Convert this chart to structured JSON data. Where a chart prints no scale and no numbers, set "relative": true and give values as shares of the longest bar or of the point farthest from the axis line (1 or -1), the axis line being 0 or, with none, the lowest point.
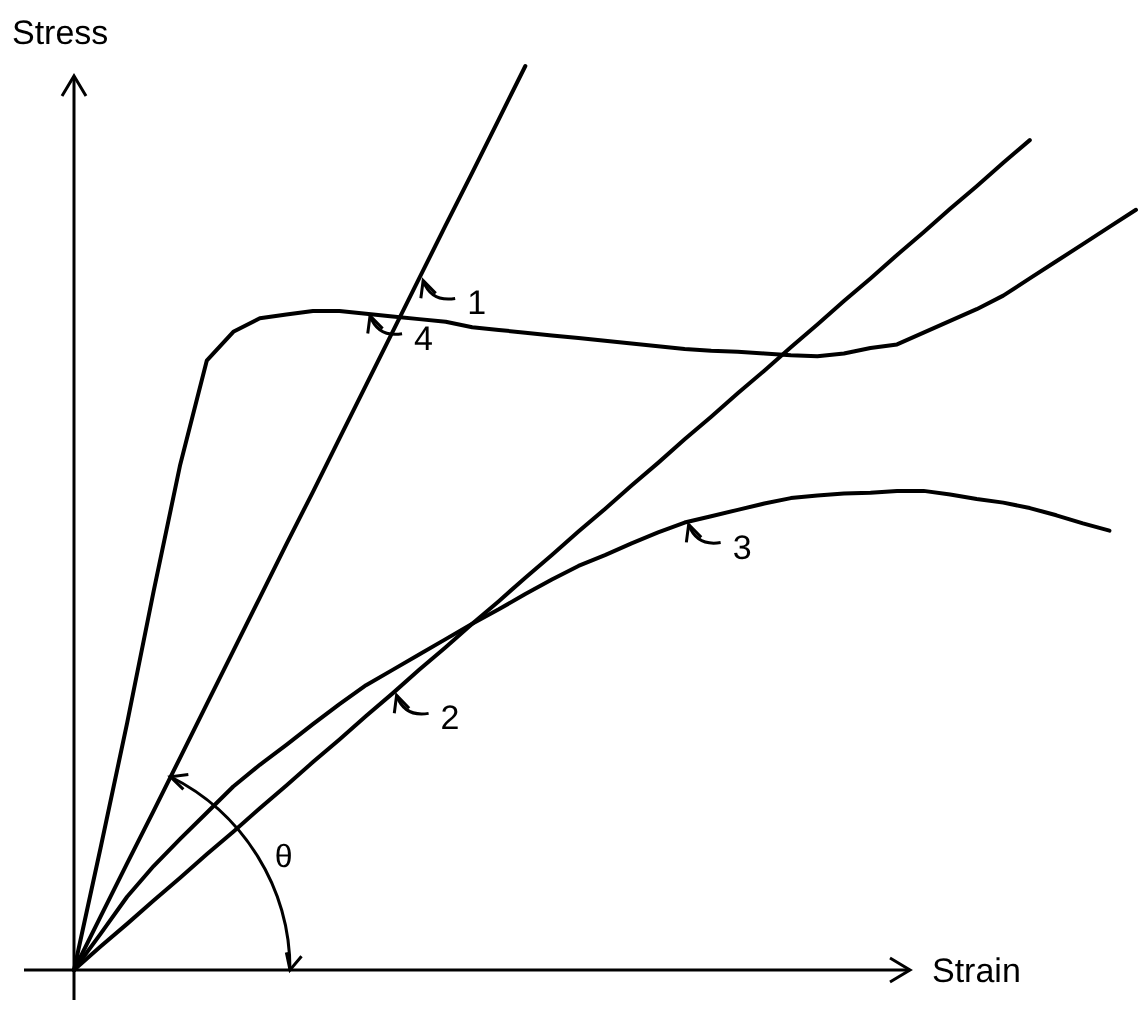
{
  "chart_data": {
    "type": "line",
    "relative": true,
    "xlabel": "Strain",
    "ylabel": "Stress",
    "marker": "none",
    "line_style": "solid",
    "categories": [
      null,
      null,
      null,
      null,
      null,
      null,
      null,
      null,
      null,
      null,
      null,
      null,
      null,
      null,
      null,
      null,
      null,
      null,
      null,
      null,
      null,
      null,
      null,
      null,
      null,
      null,
      null,
      null,
      null,
      null,
      null,
      null,
      null,
      null,
      null,
      null,
      null,
      null,
      null,
      null,
      null
    ],
    "series": [
      {
        "color": "#000000",
        "values": [
          0,
          0.059,
          0.118,
          0.176,
          0.235,
          0.294,
          0.353,
          0.412,
          0.471,
          0.529,
          0.588,
          0.647,
          0.706,
          0.765,
          0.824,
          0.882,
          0.941,
          1,
          null,
          null,
          null,
          null,
          null,
          null,
          null,
          null,
          null,
          null,
          null,
          null,
          null,
          null,
          null,
          null,
          null,
          null,
          null,
          null,
          null,
          null,
          null
        ]
      },
      {
        "color": "#000000",
        "values": [
          0,
          0.026,
          0.051,
          0.077,
          0.102,
          0.128,
          0.153,
          0.179,
          0.204,
          0.23,
          0.255,
          0.281,
          0.306,
          0.332,
          0.357,
          0.383,
          0.408,
          0.434,
          0.459,
          0.485,
          0.51,
          0.536,
          0.561,
          0.587,
          0.612,
          0.638,
          0.663,
          0.689,
          0.714,
          0.74,
          0.765,
          0.791,
          0.816,
          0.842,
          0.867,
          0.893,
          0.918,
          null,
          null,
          null,
          null
        ]
      },
      {
        "color": "#000000",
        "values": [
          0,
          0.04,
          0.081,
          0.115,
          0.145,
          0.174,
          0.203,
          0.227,
          0.249,
          0.272,
          0.294,
          0.315,
          0.332,
          0.349,
          0.366,
          0.383,
          0.399,
          0.416,
          0.432,
          0.447,
          0.459,
          0.472,
          0.484,
          0.495,
          0.502,
          0.509,
          0.516,
          0.522,
          0.525,
          0.527,
          0.528,
          0.53,
          0.53,
          0.526,
          0.521,
          0.517,
          0.511,
          0.503,
          0.494,
          0.486,
          null
        ]
      },
      {
        "color": "#000000",
        "values": [
          0,
          0.135,
          0.273,
          0.419,
          0.559,
          0.674,
          0.706,
          0.721,
          0.725,
          0.729,
          0.729,
          0.726,
          0.723,
          0.72,
          0.717,
          0.711,
          0.708,
          0.705,
          0.702,
          0.699,
          0.696,
          0.693,
          0.69,
          0.687,
          0.685,
          0.684,
          0.682,
          0.68,
          0.679,
          0.682,
          0.688,
          0.692,
          0.705,
          0.718,
          0.731,
          0.746,
          0.765,
          0.784,
          0.803,
          0.822,
          0.841
        ]
      }
    ],
    "annotations": [
      "1",
      "2",
      "3",
      "4",
      "θ"
    ]
  }
}
